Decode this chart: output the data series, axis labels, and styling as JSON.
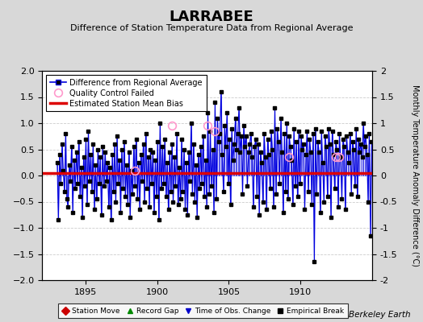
{
  "title": "LARRABEE",
  "subtitle": "Difference of Station Temperature Data from Regional Average",
  "ylabel": "Monthly Temperature Anomaly Difference (°C)",
  "xlim": [
    1892.0,
    1915.0
  ],
  "ylim": [
    -2,
    2
  ],
  "yticks": [
    -2,
    -1.5,
    -1,
    -0.5,
    0,
    0.5,
    1,
    1.5,
    2
  ],
  "xticks": [
    1895,
    1900,
    1905,
    1910
  ],
  "mean_bias": 0.05,
  "background_color": "#d8d8d8",
  "plot_bg_color": "#ffffff",
  "line_color": "#0000dd",
  "line_fill_color": "#9999ff",
  "bias_color": "#dd0000",
  "marker_color": "#000000",
  "qc_color": "#ff99cc",
  "watermark": "Berkeley Earth",
  "times": [
    1893.04,
    1893.12,
    1893.21,
    1893.29,
    1893.38,
    1893.46,
    1893.54,
    1893.63,
    1893.71,
    1893.79,
    1893.88,
    1893.96,
    1894.04,
    1894.12,
    1894.21,
    1894.29,
    1894.38,
    1894.46,
    1894.54,
    1894.63,
    1894.71,
    1894.79,
    1894.88,
    1894.96,
    1895.04,
    1895.12,
    1895.21,
    1895.29,
    1895.38,
    1895.46,
    1895.54,
    1895.63,
    1895.71,
    1895.79,
    1895.88,
    1895.96,
    1896.04,
    1896.12,
    1896.21,
    1896.29,
    1896.38,
    1896.46,
    1896.54,
    1896.63,
    1896.71,
    1896.79,
    1896.88,
    1896.96,
    1897.04,
    1897.12,
    1897.21,
    1897.29,
    1897.38,
    1897.46,
    1897.54,
    1897.63,
    1897.71,
    1897.79,
    1897.88,
    1897.96,
    1898.04,
    1898.12,
    1898.21,
    1898.29,
    1898.38,
    1898.46,
    1898.54,
    1898.63,
    1898.71,
    1898.79,
    1898.88,
    1898.96,
    1899.04,
    1899.12,
    1899.21,
    1899.29,
    1899.38,
    1899.46,
    1899.54,
    1899.63,
    1899.71,
    1899.79,
    1899.88,
    1899.96,
    1900.04,
    1900.12,
    1900.21,
    1900.29,
    1900.38,
    1900.46,
    1900.54,
    1900.63,
    1900.71,
    1900.79,
    1900.88,
    1900.96,
    1901.04,
    1901.12,
    1901.21,
    1901.29,
    1901.38,
    1901.46,
    1901.54,
    1901.63,
    1901.71,
    1901.79,
    1901.88,
    1901.96,
    1902.04,
    1902.12,
    1902.21,
    1902.29,
    1902.38,
    1902.46,
    1902.54,
    1902.63,
    1902.71,
    1902.79,
    1902.88,
    1902.96,
    1903.04,
    1903.12,
    1903.21,
    1903.29,
    1903.38,
    1903.46,
    1903.54,
    1903.63,
    1903.71,
    1903.79,
    1903.88,
    1903.96,
    1904.04,
    1904.12,
    1904.21,
    1904.29,
    1904.38,
    1904.46,
    1904.54,
    1904.63,
    1904.71,
    1904.79,
    1904.88,
    1904.96,
    1905.04,
    1905.12,
    1905.21,
    1905.29,
    1905.38,
    1905.46,
    1905.54,
    1905.63,
    1905.71,
    1905.79,
    1905.88,
    1905.96,
    1906.04,
    1906.12,
    1906.21,
    1906.29,
    1906.38,
    1906.46,
    1906.54,
    1906.63,
    1906.71,
    1906.79,
    1906.88,
    1906.96,
    1907.04,
    1907.12,
    1907.21,
    1907.29,
    1907.38,
    1907.46,
    1907.54,
    1907.63,
    1907.71,
    1907.79,
    1907.88,
    1907.96,
    1908.04,
    1908.12,
    1908.21,
    1908.29,
    1908.38,
    1908.46,
    1908.54,
    1908.63,
    1908.71,
    1908.79,
    1908.88,
    1908.96,
    1909.04,
    1909.12,
    1909.21,
    1909.29,
    1909.38,
    1909.46,
    1909.54,
    1909.63,
    1909.71,
    1909.79,
    1909.88,
    1909.96,
    1910.04,
    1910.12,
    1910.21,
    1910.29,
    1910.38,
    1910.46,
    1910.54,
    1910.63,
    1910.71,
    1910.79,
    1910.88,
    1910.96,
    1911.04,
    1911.12,
    1911.21,
    1911.29,
    1911.38,
    1911.46,
    1911.54,
    1911.63,
    1911.71,
    1911.79,
    1911.88,
    1911.96,
    1912.04,
    1912.12,
    1912.21,
    1912.29,
    1912.38,
    1912.46,
    1912.54,
    1912.63,
    1912.71,
    1912.79,
    1912.88,
    1912.96,
    1913.04,
    1913.12,
    1913.21,
    1913.29,
    1913.38,
    1913.46,
    1913.54,
    1913.63,
    1913.71,
    1913.79,
    1913.88,
    1913.96,
    1914.04,
    1914.12,
    1914.21,
    1914.29,
    1914.38,
    1914.46,
    1914.54,
    1914.63,
    1914.71,
    1914.79,
    1914.88,
    1914.96
  ],
  "values": [
    0.25,
    -0.85,
    0.4,
    -0.15,
    0.6,
    0.1,
    -0.3,
    0.8,
    -0.45,
    -0.6,
    0.2,
    -0.1,
    0.55,
    -0.7,
    0.3,
    -0.25,
    0.45,
    -0.15,
    0.65,
    -0.4,
    0.15,
    -0.8,
    0.35,
    -0.2,
    0.7,
    -0.55,
    0.85,
    -0.1,
    0.4,
    -0.3,
    0.6,
    -0.65,
    0.2,
    -0.45,
    0.5,
    -0.15,
    0.35,
    -0.75,
    0.55,
    -0.2,
    0.45,
    -0.1,
    0.25,
    -0.6,
    0.15,
    -0.85,
    0.4,
    -0.3,
    0.6,
    -0.5,
    0.75,
    -0.15,
    0.3,
    -0.7,
    0.5,
    -0.25,
    0.65,
    -0.4,
    0.2,
    -0.55,
    0.45,
    -0.8,
    0.1,
    -0.35,
    0.55,
    -0.2,
    0.7,
    -0.45,
    0.25,
    -0.65,
    0.4,
    -0.1,
    0.6,
    -0.5,
    0.8,
    -0.25,
    0.35,
    -0.6,
    0.5,
    -0.15,
    0.45,
    -0.7,
    0.3,
    -0.4,
    0.65,
    -0.85,
    1.0,
    -0.25,
    0.55,
    -0.15,
    0.7,
    -0.4,
    0.25,
    -0.65,
    0.45,
    -0.3,
    0.6,
    -0.5,
    0.35,
    -0.2,
    0.8,
    -0.55,
    0.15,
    -0.45,
    0.7,
    -0.3,
    0.5,
    -0.65,
    0.25,
    -0.75,
    0.45,
    -0.1,
    1.0,
    -0.35,
    0.6,
    -0.5,
    0.2,
    -0.8,
    0.4,
    -0.25,
    0.55,
    -0.15,
    0.75,
    -0.4,
    0.3,
    -0.6,
    1.2,
    -0.35,
    0.85,
    -0.2,
    0.5,
    -0.7,
    1.4,
    -0.45,
    1.1,
    0.65,
    0.8,
    1.6,
    0.4,
    -0.3,
    0.95,
    0.55,
    1.2,
    -0.15,
    0.7,
    -0.55,
    0.9,
    0.3,
    0.6,
    1.1,
    0.5,
    0.8,
    1.3,
    0.45,
    0.75,
    -0.35,
    0.95,
    0.55,
    0.75,
    -0.2,
    0.45,
    0.6,
    0.8,
    0.35,
    -0.6,
    0.55,
    0.7,
    -0.4,
    0.6,
    -0.75,
    0.45,
    0.25,
    -0.5,
    0.8,
    0.35,
    -0.65,
    0.7,
    0.4,
    -0.25,
    0.85,
    0.5,
    -0.6,
    1.3,
    -0.35,
    0.9,
    0.65,
    -0.15,
    1.1,
    0.45,
    -0.7,
    0.8,
    -0.3,
    1.0,
    -0.45,
    0.75,
    0.55,
    0.3,
    -0.55,
    0.9,
    -0.2,
    0.65,
    -0.4,
    0.85,
    -0.15,
    0.75,
    0.5,
    0.6,
    -0.65,
    0.4,
    0.85,
    -0.3,
    0.7,
    0.45,
    -0.55,
    0.8,
    -1.65,
    0.9,
    -0.35,
    0.65,
    0.45,
    -0.7,
    0.85,
    0.25,
    -0.5,
    0.75,
    0.55,
    -0.4,
    0.9,
    0.6,
    -0.8,
    0.85,
    0.4,
    -0.25,
    0.65,
    0.5,
    -0.6,
    0.8,
    0.35,
    -0.45,
    0.7,
    0.55,
    -0.65,
    0.75,
    0.45,
    0.25,
    0.8,
    -0.35,
    0.65,
    0.5,
    -0.2,
    0.9,
    -0.4,
    0.7,
    0.45,
    0.6,
    0.35,
    1.0,
    0.55,
    0.75,
    0.4,
    -0.5,
    0.8,
    -1.15,
    0.65
  ],
  "qc_failed_times": [
    1898.46,
    1901.04,
    1903.54,
    1904.04,
    1909.21,
    1912.46,
    1912.71
  ],
  "qc_failed_values": [
    0.1,
    0.95,
    0.95,
    0.85,
    0.35,
    0.35,
    0.35
  ],
  "bottom_legend_items": [
    {
      "label": "Station Move",
      "color": "#cc0000",
      "marker": "D"
    },
    {
      "label": "Record Gap",
      "color": "#008800",
      "marker": "^"
    },
    {
      "label": "Time of Obs. Change",
      "color": "#0000cc",
      "marker": "v"
    },
    {
      "label": "Empirical Break",
      "color": "#000000",
      "marker": "s"
    }
  ]
}
